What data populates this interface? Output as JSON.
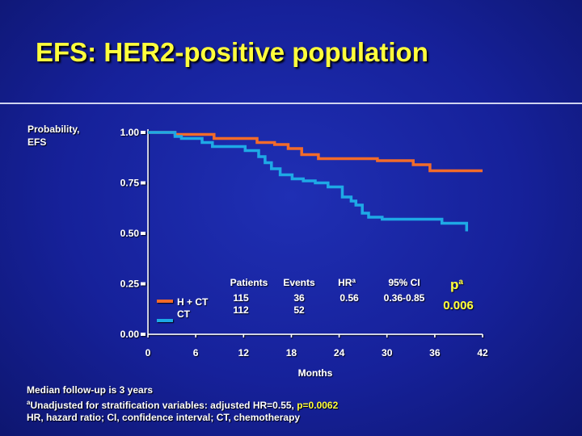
{
  "slide": {
    "title": "EFS: HER2-positive population",
    "ylabel_line1": "Probability,",
    "ylabel_line2": "EFS"
  },
  "colors": {
    "background": "#16219a",
    "title": "#ffff3c",
    "series_h_ct": "#f26b2a",
    "series_ct": "#1ea9e6"
  },
  "chart_data": {
    "type": "line",
    "step": true,
    "title": "EFS: HER2-positive population",
    "ylabel": "Probability, EFS",
    "xlabel": "Months",
    "xlim": [
      0,
      42
    ],
    "ylim": [
      0,
      1
    ],
    "xticks": [
      "0",
      "6",
      "12",
      "18",
      "24",
      "30",
      "36",
      "42"
    ],
    "yticks": [
      "0.00",
      "0.25",
      "0.50",
      "0.75",
      "1.00"
    ],
    "series": [
      {
        "name": "H + CT",
        "color": "#f26b2a",
        "points": [
          [
            0,
            1.0
          ],
          [
            3.4,
            1.0
          ],
          [
            3.4,
            0.99
          ],
          [
            8.3,
            0.99
          ],
          [
            8.3,
            0.97
          ],
          [
            13.7,
            0.97
          ],
          [
            13.7,
            0.95
          ],
          [
            15.9,
            0.95
          ],
          [
            15.9,
            0.94
          ],
          [
            17.6,
            0.94
          ],
          [
            17.6,
            0.92
          ],
          [
            19.3,
            0.92
          ],
          [
            19.3,
            0.89
          ],
          [
            21.4,
            0.89
          ],
          [
            21.4,
            0.87
          ],
          [
            28.8,
            0.87
          ],
          [
            28.8,
            0.86
          ],
          [
            33.3,
            0.86
          ],
          [
            33.3,
            0.84
          ],
          [
            35.4,
            0.84
          ],
          [
            35.4,
            0.81
          ],
          [
            42.0,
            0.81
          ]
        ]
      },
      {
        "name": "CT",
        "color": "#1ea9e6",
        "points": [
          [
            0,
            1.0
          ],
          [
            3.4,
            1.0
          ],
          [
            3.4,
            0.98
          ],
          [
            4.2,
            0.98
          ],
          [
            4.2,
            0.97
          ],
          [
            6.8,
            0.97
          ],
          [
            6.8,
            0.95
          ],
          [
            8.1,
            0.95
          ],
          [
            8.1,
            0.93
          ],
          [
            12.2,
            0.93
          ],
          [
            12.2,
            0.91
          ],
          [
            13.9,
            0.91
          ],
          [
            13.9,
            0.88
          ],
          [
            14.7,
            0.88
          ],
          [
            14.7,
            0.85
          ],
          [
            15.5,
            0.85
          ],
          [
            15.5,
            0.82
          ],
          [
            16.6,
            0.82
          ],
          [
            16.6,
            0.79
          ],
          [
            18.1,
            0.79
          ],
          [
            18.1,
            0.77
          ],
          [
            19.5,
            0.77
          ],
          [
            19.5,
            0.76
          ],
          [
            21.0,
            0.76
          ],
          [
            21.0,
            0.75
          ],
          [
            22.6,
            0.75
          ],
          [
            22.6,
            0.73
          ],
          [
            24.4,
            0.73
          ],
          [
            24.4,
            0.68
          ],
          [
            25.5,
            0.68
          ],
          [
            25.5,
            0.66
          ],
          [
            26.1,
            0.66
          ],
          [
            26.1,
            0.64
          ],
          [
            26.9,
            0.64
          ],
          [
            26.9,
            0.6
          ],
          [
            27.7,
            0.6
          ],
          [
            27.7,
            0.58
          ],
          [
            29.4,
            0.58
          ],
          [
            29.4,
            0.57
          ],
          [
            36.9,
            0.57
          ],
          [
            36.9,
            0.55
          ],
          [
            40.0,
            0.55
          ],
          [
            40.0,
            0.51
          ]
        ]
      }
    ]
  },
  "table": {
    "headers": {
      "patients": "Patients",
      "events": "Events",
      "hr": "HR",
      "hr_sup": "a",
      "ci": "95% CI",
      "p": "p",
      "p_sup": "a"
    },
    "rows": [
      {
        "label": "H + CT",
        "patients": "115",
        "events": "36"
      },
      {
        "label": "CT",
        "patients": "112",
        "events": "52"
      }
    ],
    "hr_value": "0.56",
    "ci_value": "0.36-0.85",
    "p_value": "0.006"
  },
  "footnote": {
    "line1": "Median follow-up is 3 years",
    "line2_sup": "a",
    "line2_text": "Unadjusted for stratification variables: adjusted HR=0.55, ",
    "line2_p": "p=0.0062",
    "line3": "HR, hazard ratio; CI, confidence interval; CT, chemotherapy"
  }
}
